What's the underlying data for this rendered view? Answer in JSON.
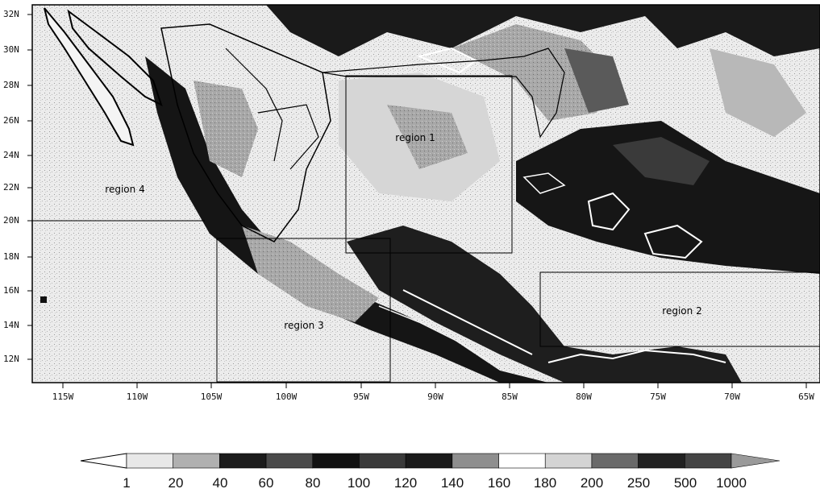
{
  "map": {
    "lat_labels": [
      "32N",
      "30N",
      "28N",
      "26N",
      "24N",
      "22N",
      "20N",
      "18N",
      "16N",
      "14N",
      "12N"
    ],
    "lon_labels": [
      "115W",
      "110W",
      "105W",
      "100W",
      "95W",
      "90W",
      "85W",
      "80W",
      "75W",
      "70W",
      "65W"
    ],
    "regions": [
      {
        "label": "region 1"
      },
      {
        "label": "region 2"
      },
      {
        "label": "region 3"
      },
      {
        "label": "region 4"
      }
    ]
  },
  "colorbar": {
    "labels": [
      "1",
      "20",
      "40",
      "60",
      "80",
      "100",
      "120",
      "140",
      "160",
      "180",
      "200",
      "250",
      "500",
      "1000"
    ],
    "colors": [
      "#ffffff",
      "#e8e8e8",
      "#b0b0b0",
      "#1c1c1c",
      "#4a4a4a",
      "#111111",
      "#3a3a3a",
      "#1a1a1a",
      "#8e8e8e",
      "#ffffff",
      "#d4d4d4",
      "#6a6a6a",
      "#222222",
      "#444444",
      "#9a9a9a"
    ]
  }
}
